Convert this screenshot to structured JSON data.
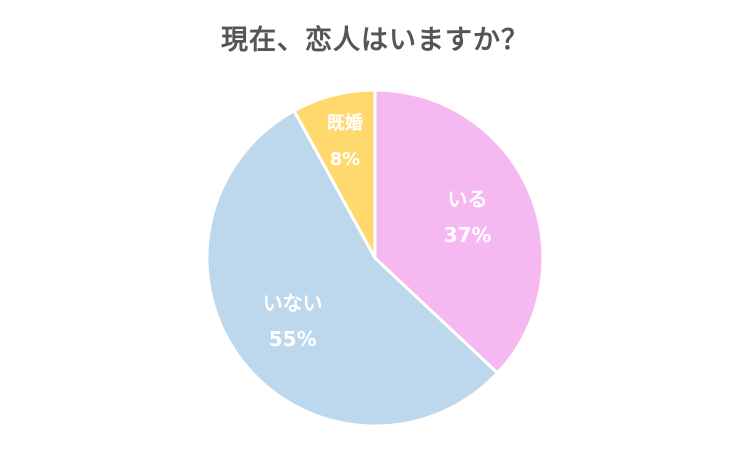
{
  "chart_data": {
    "type": "pie",
    "title": "現在、恋人はいますか？",
    "categories": [
      "いる",
      "いない",
      "既婚"
    ],
    "values": [
      37,
      55,
      8
    ],
    "value_labels": [
      "37%",
      "55%",
      "8%"
    ],
    "unit": "%",
    "colors": [
      "#f5b8f0",
      "#bdd7ec",
      "#ffd86e"
    ],
    "slice_border_color": "#ffffff",
    "start": "top, clockwise",
    "legend": "none"
  }
}
